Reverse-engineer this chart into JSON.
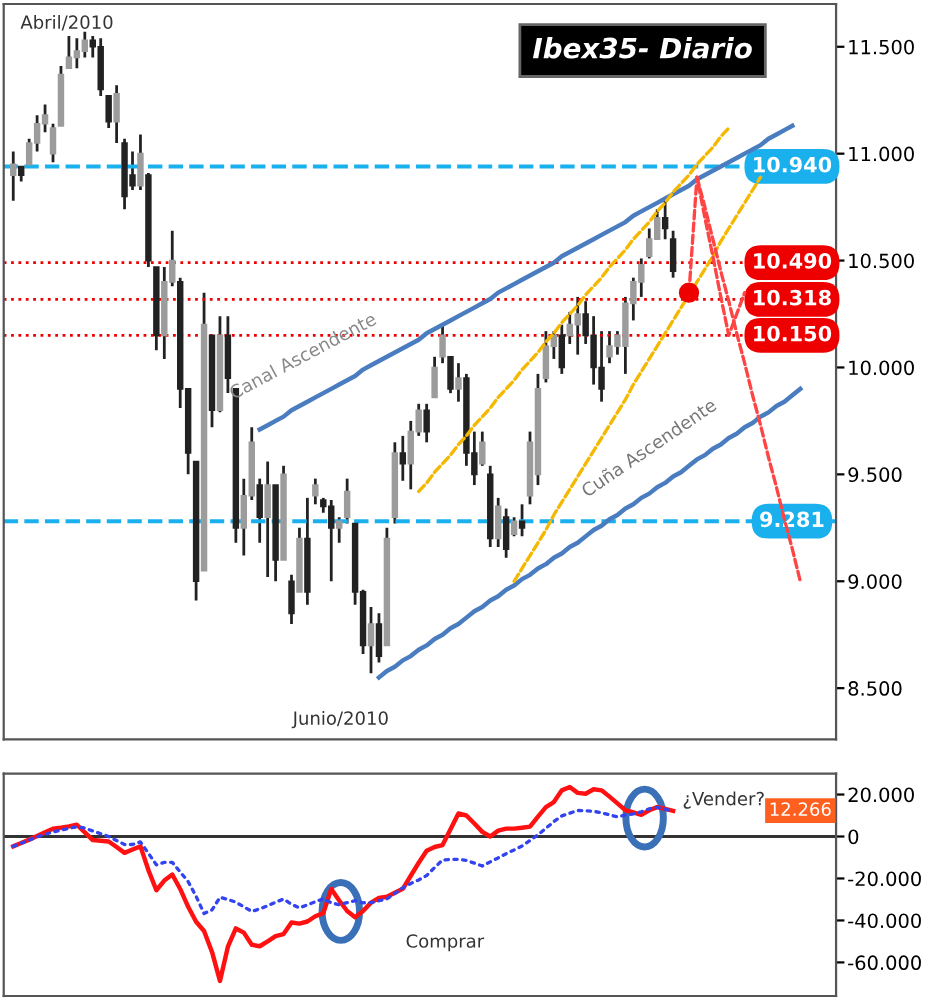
{
  "chart_data": [
    {
      "type": "candlestick",
      "title": "Ibex35- Diario",
      "color": "#222222",
      "colors": [
        "#9c9c9c",
        "#222222",
        "#9c9c9c",
        "#9c9c9c",
        "#9c9c9c",
        "#9c9c9c",
        "#9c9c9c",
        "#9c9c9c",
        "#9c9c9c",
        "#9c9c9c",
        "#222222",
        "#222222",
        "#222222",
        "#9c9c9c",
        "#222222",
        "#222222",
        "#9c9c9c",
        "#222222",
        "#222222",
        "#9c9c9c",
        "#9c9c9c",
        "#222222",
        "#222222",
        "#222222",
        "#9c9c9c",
        "#222222",
        "#9c9c9c",
        "#222222",
        "#222222",
        "#9c9c9c",
        "#9c9c9c",
        "#222222",
        "#9c9c9c",
        "#222222",
        "#9c9c9c",
        "#222222",
        "#9c9c9c",
        "#222222",
        "#9c9c9c",
        "#222222",
        "#222222",
        "#9c9c9c",
        "#9c9c9c",
        "#222222",
        "#222222",
        "#9c9c9c",
        "#222222",
        "#9c9c9c",
        "#9c9c9c",
        "#222222",
        "#9c9c9c",
        "#9c9c9c",
        "#222222",
        "#9c9c9c",
        "#9c9c9c",
        "#222222",
        "#9c9c9c",
        "#222222",
        "#222222",
        "#9c9c9c",
        "#222222",
        "#9c9c9c",
        "#222222",
        "#9c9c9c",
        "#222222",
        "#9c9c9c",
        "#9c9c9c",
        "#9c9c9c",
        "#9c9c9c",
        "#222222",
        "#9c9c9c",
        "#9c9c9c",
        "#222222",
        "#222222",
        "#222222",
        "#9c9c9c",
        "#9c9c9c",
        "#9c9c9c",
        "#9c9c9c",
        "#9c9c9c",
        "#9c9c9c",
        "#9c9c9c",
        "#222222",
        "#222222",
        null,
        null,
        null,
        null,
        null,
        null,
        null,
        null,
        null,
        null,
        null,
        null,
        null,
        null,
        null,
        null
      ],
      "categories": [
        null,
        null,
        null,
        null,
        null,
        null,
        null,
        null,
        null,
        null,
        null,
        null,
        null,
        null,
        null,
        null,
        null,
        null,
        null,
        null,
        null,
        null,
        null,
        null,
        null,
        null,
        null,
        null,
        null,
        null,
        null,
        null,
        null,
        null,
        null,
        null,
        null,
        null,
        null,
        null,
        null,
        null,
        null,
        null,
        null,
        null,
        null,
        null,
        null,
        null,
        null,
        null,
        null,
        null,
        null,
        null,
        null,
        null,
        null,
        null,
        null,
        null,
        null,
        null,
        null,
        null,
        null,
        null,
        null,
        null,
        null,
        null,
        null,
        null,
        null,
        null,
        null,
        null,
        null,
        null,
        null,
        null,
        null,
        null,
        null,
        null,
        null,
        null,
        null,
        null,
        null,
        null,
        null,
        null,
        null,
        null,
        null,
        null,
        null,
        null
      ],
      "ohlc": [
        [
          10900,
          11010,
          10780,
          10950
        ],
        [
          10940,
          10940,
          10870,
          10900
        ],
        [
          10950,
          11070,
          10950,
          11050
        ],
        [
          11050,
          11180,
          11010,
          11140
        ],
        [
          11140,
          11230,
          11100,
          11180
        ],
        [
          11000,
          11140,
          10960,
          11120
        ],
        [
          11130,
          11410,
          11130,
          11370
        ],
        [
          11400,
          11550,
          11400,
          11450
        ],
        [
          11450,
          11540,
          11400,
          11480
        ],
        [
          11480,
          11570,
          11450,
          11530
        ],
        [
          11530,
          11550,
          11450,
          11500
        ],
        [
          11500,
          11540,
          11270,
          11300
        ],
        [
          11270,
          11270,
          11120,
          11150
        ],
        [
          11150,
          11320,
          11050,
          11280
        ],
        [
          11050,
          11070,
          10740,
          10800
        ],
        [
          10900,
          11010,
          10830,
          10850
        ],
        [
          10850,
          11090,
          10830,
          11000
        ],
        [
          10900,
          10910,
          10470,
          10500
        ],
        [
          10470,
          10470,
          10080,
          10150
        ],
        [
          10150,
          10470,
          10040,
          10400
        ],
        [
          10400,
          10640,
          10380,
          10500
        ],
        [
          10400,
          10420,
          9810,
          9900
        ],
        [
          9900,
          9900,
          9500,
          9600
        ],
        [
          9560,
          9560,
          8910,
          9000
        ],
        [
          9050,
          10350,
          9050,
          10200
        ],
        [
          10150,
          10150,
          9720,
          9800
        ],
        [
          9800,
          10240,
          9790,
          10150
        ],
        [
          10150,
          10240,
          9880,
          9950
        ],
        [
          9900,
          9900,
          9180,
          9250
        ],
        [
          9250,
          9480,
          9120,
          9400
        ],
        [
          9400,
          9720,
          9380,
          9650
        ],
        [
          9450,
          9480,
          9180,
          9300
        ],
        [
          9300,
          9560,
          9020,
          9450
        ],
        [
          9450,
          9450,
          9000,
          9100
        ],
        [
          9100,
          9540,
          9100,
          9500
        ],
        [
          9000,
          9030,
          8800,
          8850
        ],
        [
          8950,
          9250,
          8950,
          9200
        ],
        [
          9200,
          9390,
          8890,
          8950
        ],
        [
          9400,
          9480,
          9360,
          9450
        ],
        [
          9380,
          9390,
          9320,
          9350
        ],
        [
          9350,
          9380,
          9000,
          9250
        ],
        [
          9250,
          9300,
          9180,
          9280
        ],
        [
          9300,
          9480,
          9270,
          9420
        ],
        [
          9270,
          9270,
          8890,
          8950
        ],
        [
          8950,
          8960,
          8660,
          8700
        ],
        [
          8700,
          8880,
          8570,
          8800
        ],
        [
          8800,
          8850,
          8620,
          8650
        ],
        [
          8700,
          9250,
          8700,
          9200
        ],
        [
          9300,
          9650,
          9270,
          9600
        ],
        [
          9600,
          9680,
          9470,
          9550
        ],
        [
          9550,
          9750,
          9430,
          9700
        ],
        [
          9700,
          9830,
          9680,
          9800
        ],
        [
          9800,
          9830,
          9650,
          9700
        ],
        [
          9860,
          10050,
          9860,
          10000
        ],
        [
          10050,
          10200,
          10020,
          10150
        ],
        [
          10050,
          10050,
          9880,
          9900
        ],
        [
          9900,
          10020,
          9840,
          9950
        ],
        [
          9950,
          9970,
          9540,
          9600
        ],
        [
          9600,
          9700,
          9450,
          9500
        ],
        [
          9550,
          9700,
          9540,
          9650
        ],
        [
          9500,
          9540,
          9160,
          9200
        ],
        [
          9200,
          9390,
          9160,
          9350
        ],
        [
          9300,
          9340,
          9110,
          9150
        ],
        [
          9220,
          9300,
          9210,
          9280
        ],
        [
          9280,
          9360,
          9210,
          9250
        ],
        [
          9400,
          9700,
          9360,
          9650
        ],
        [
          9500,
          9970,
          9450,
          9900
        ],
        [
          9950,
          10170,
          9930,
          10100
        ],
        [
          10100,
          10170,
          10040,
          10150
        ],
        [
          10150,
          10200,
          9970,
          10000
        ],
        [
          10150,
          10260,
          10110,
          10200
        ],
        [
          10200,
          10330,
          10060,
          10250
        ],
        [
          10250,
          10310,
          10110,
          10150
        ],
        [
          10150,
          10240,
          9920,
          10000
        ],
        [
          10000,
          10170,
          9840,
          9900
        ],
        [
          10050,
          10170,
          10020,
          10100
        ],
        [
          10100,
          10170,
          10060,
          10150
        ],
        [
          10100,
          10330,
          9970,
          10300
        ],
        [
          10300,
          10420,
          10220,
          10400
        ],
        [
          10400,
          10510,
          10330,
          10480
        ],
        [
          10520,
          10650,
          10510,
          10600
        ],
        [
          10600,
          10740,
          10600,
          10700
        ],
        [
          10700,
          10780,
          10600,
          10650
        ],
        [
          10600,
          10640,
          10420,
          10450
        ],
        null,
        null,
        null,
        null,
        null,
        null,
        null,
        null,
        null,
        null,
        null,
        null,
        null,
        null,
        null,
        null
      ],
      "series": [
        {
          "type": "line",
          "color": "#4a7cc0",
          "line_style": "solid",
          "values": [
            null,
            null,
            null,
            null,
            null,
            null,
            null,
            null,
            null,
            null,
            null,
            null,
            null,
            null,
            null,
            null,
            null,
            null,
            null,
            null,
            null,
            null,
            null,
            null,
            null,
            null,
            null,
            null,
            null,
            null,
            null,
            9710,
            9730,
            9750,
            9770,
            9800,
            9820,
            9840,
            9860,
            9880,
            9900,
            9920,
            9940,
            9960,
            9990,
            10010,
            10030,
            10050,
            10070,
            10090,
            10110,
            10130,
            10160,
            10180,
            10200,
            10220,
            10240,
            10260,
            10280,
            10300,
            10320,
            10350,
            10370,
            10390,
            10410,
            10430,
            10450,
            10470,
            10490,
            10520,
            10540,
            10560,
            10580,
            10600,
            10620,
            10640,
            10660,
            10680,
            10710,
            10730,
            10750,
            10770,
            10790,
            10810,
            10830,
            10850,
            10880,
            10900,
            10920,
            10940,
            10960,
            10980,
            11000,
            11020,
            11040,
            11070,
            11090,
            11110,
            11130,
            null
          ]
        },
        {
          "type": "line",
          "color": "#4a7cc0",
          "line_style": "solid",
          "values": [
            null,
            null,
            null,
            null,
            null,
            null,
            null,
            null,
            null,
            null,
            null,
            null,
            null,
            null,
            null,
            null,
            null,
            null,
            null,
            null,
            null,
            null,
            null,
            null,
            null,
            null,
            null,
            null,
            null,
            null,
            null,
            null,
            null,
            null,
            null,
            null,
            null,
            null,
            null,
            null,
            null,
            null,
            null,
            null,
            null,
            null,
            8550,
            8580,
            8600,
            8630,
            8650,
            8680,
            8700,
            8730,
            8750,
            8780,
            8800,
            8830,
            8860,
            8880,
            8910,
            8930,
            8960,
            8980,
            9010,
            9030,
            9060,
            9080,
            9110,
            9130,
            9160,
            9180,
            9210,
            9240,
            9260,
            9290,
            9310,
            9340,
            9360,
            9390,
            9410,
            9440,
            9460,
            9490,
            9510,
            9540,
            9570,
            9590,
            9620,
            9640,
            9670,
            9690,
            9720,
            9740,
            9770,
            9790,
            9820,
            9840,
            9870,
            9900
          ]
        },
        {
          "type": "line",
          "color": "#f5b800",
          "line_style": "dashed",
          "values": [
            null,
            null,
            null,
            null,
            null,
            null,
            null,
            null,
            null,
            null,
            null,
            null,
            null,
            null,
            null,
            null,
            null,
            null,
            null,
            null,
            null,
            null,
            null,
            null,
            null,
            null,
            null,
            null,
            null,
            null,
            null,
            null,
            null,
            null,
            null,
            null,
            null,
            null,
            null,
            null,
            null,
            null,
            null,
            null,
            null,
            null,
            null,
            null,
            null,
            null,
            null,
            9420,
            9460,
            9510,
            9550,
            9590,
            9640,
            9680,
            9730,
            9770,
            9810,
            9860,
            9900,
            9940,
            9990,
            10030,
            10070,
            10120,
            10160,
            10210,
            10250,
            10290,
            10340,
            10380,
            10420,
            10470,
            10510,
            10550,
            10600,
            10640,
            10680,
            10730,
            10770,
            10820,
            10860,
            10900,
            10950,
            10990,
            11030,
            11080,
            11120,
            null,
            null,
            null,
            null,
            null,
            null,
            null,
            null,
            null
          ]
        },
        {
          "type": "line",
          "color": "#f5b800",
          "line_style": "dashed",
          "values": [
            null,
            null,
            null,
            null,
            null,
            null,
            null,
            null,
            null,
            null,
            null,
            null,
            null,
            null,
            null,
            null,
            null,
            null,
            null,
            null,
            null,
            null,
            null,
            null,
            null,
            null,
            null,
            null,
            null,
            null,
            null,
            null,
            null,
            null,
            null,
            null,
            null,
            null,
            null,
            null,
            null,
            null,
            null,
            null,
            null,
            null,
            null,
            null,
            null,
            null,
            null,
            null,
            null,
            null,
            null,
            null,
            null,
            null,
            null,
            null,
            null,
            null,
            null,
            9000,
            9060,
            9120,
            9180,
            9240,
            9310,
            9370,
            9430,
            9490,
            9550,
            9610,
            9670,
            9730,
            9790,
            9850,
            9920,
            9980,
            10040,
            10100,
            10160,
            10220,
            10280,
            10340,
            10400,
            10460,
            10520,
            10590,
            10650,
            10710,
            10770,
            10830,
            10890,
            null,
            null,
            null,
            null,
            null
          ]
        },
        {
          "type": "line",
          "color": "#ff4444",
          "line_style": "dashed",
          "values": [
            null,
            null,
            null,
            null,
            null,
            null,
            null,
            null,
            null,
            null,
            null,
            null,
            null,
            null,
            null,
            null,
            null,
            null,
            null,
            null,
            null,
            null,
            null,
            null,
            null,
            null,
            null,
            null,
            null,
            null,
            null,
            null,
            null,
            null,
            null,
            null,
            null,
            null,
            null,
            null,
            null,
            null,
            null,
            null,
            null,
            null,
            null,
            null,
            null,
            null,
            null,
            null,
            null,
            null,
            null,
            null,
            null,
            null,
            null,
            null,
            null,
            null,
            null,
            null,
            null,
            null,
            null,
            null,
            null,
            null,
            null,
            null,
            null,
            null,
            null,
            null,
            null,
            null,
            null,
            null,
            null,
            null,
            null,
            null,
            null,
            10350,
            10890,
            10700,
            10520,
            10330,
            10150,
            10250,
            10350,
            null,
            null,
            null,
            null,
            null,
            null,
            null
          ]
        },
        {
          "type": "line",
          "color": "#ff4444",
          "line_style": "dashed",
          "values": [
            null,
            null,
            null,
            null,
            null,
            null,
            null,
            null,
            null,
            null,
            null,
            null,
            null,
            null,
            null,
            null,
            null,
            null,
            null,
            null,
            null,
            null,
            null,
            null,
            null,
            null,
            null,
            null,
            null,
            null,
            null,
            null,
            null,
            null,
            null,
            null,
            null,
            null,
            null,
            null,
            null,
            null,
            null,
            null,
            null,
            null,
            null,
            null,
            null,
            null,
            null,
            null,
            null,
            null,
            null,
            null,
            null,
            null,
            null,
            null,
            null,
            null,
            null,
            null,
            null,
            null,
            null,
            null,
            null,
            null,
            null,
            null,
            null,
            null,
            null,
            null,
            null,
            null,
            null,
            null,
            null,
            null,
            null,
            null,
            null,
            null,
            10890,
            10750,
            10600,
            10450,
            10310,
            10160,
            10020,
            9870,
            9730,
            9580,
            9440,
            9290,
            9150,
            9000
          ]
        },
        {
          "type": "scatter",
          "color": "#ee0000",
          "marker": "circle",
          "values": [
            null,
            null,
            null,
            null,
            null,
            null,
            null,
            null,
            null,
            null,
            null,
            null,
            null,
            null,
            null,
            null,
            null,
            null,
            null,
            null,
            null,
            null,
            null,
            null,
            null,
            null,
            null,
            null,
            null,
            null,
            null,
            null,
            null,
            null,
            null,
            null,
            null,
            null,
            null,
            null,
            null,
            null,
            null,
            null,
            null,
            null,
            null,
            null,
            null,
            null,
            null,
            null,
            null,
            null,
            null,
            null,
            null,
            null,
            null,
            null,
            null,
            null,
            null,
            null,
            null,
            null,
            null,
            null,
            null,
            null,
            null,
            null,
            null,
            null,
            null,
            null,
            null,
            null,
            null,
            null,
            null,
            null,
            null,
            null,
            null,
            10350,
            null,
            null,
            null,
            null,
            null,
            null,
            null,
            null,
            null,
            null,
            null,
            null,
            null,
            null
          ]
        }
      ],
      "ylim": [
        8260,
        11700
      ],
      "yticks": [
        {
          "value": 8500,
          "label": "8.500"
        },
        {
          "value": 9000,
          "label": "9.000"
        },
        {
          "value": 9500,
          "label": "9.500"
        },
        {
          "value": 10000,
          "label": "10.000"
        },
        {
          "value": 10500,
          "label": "10.500"
        },
        {
          "value": 11000,
          "label": "11.000"
        },
        {
          "value": 11500,
          "label": "11.500"
        }
      ],
      "tick_labels": "y",
      "ref_lines": [
        {
          "axis": "y",
          "value": 10940,
          "label": "10.940",
          "color": "#1ab0ee",
          "line_style": "dashed"
        },
        {
          "axis": "y",
          "value": 10490,
          "label": "10.490",
          "color": "#ee0000",
          "line_style": "dotted"
        },
        {
          "axis": "y",
          "value": 10318,
          "label": "10.318",
          "color": "#ee0000",
          "line_style": "dotted"
        },
        {
          "axis": "y",
          "value": 10150,
          "label": "10.150",
          "color": "#ee0000",
          "line_style": "dotted"
        },
        {
          "axis": "y",
          "value": 9281,
          "label": "9.281",
          "color": "#1ab0ee",
          "line_style": "dashed"
        }
      ],
      "annotations": [
        "Abril/2010",
        "Junio/2010",
        "Canal Ascendente",
        "Cuña Ascendente"
      ]
    },
    {
      "type": "line",
      "categories": [
        null,
        null,
        null,
        null,
        null,
        null,
        null,
        null,
        null,
        null,
        null,
        null,
        null,
        null,
        null,
        null,
        null,
        null,
        null,
        null,
        null,
        null,
        null,
        null,
        null,
        null,
        null,
        null,
        null,
        null,
        null,
        null,
        null,
        null,
        null,
        null,
        null,
        null,
        null,
        null,
        null,
        null,
        null,
        null,
        null,
        null,
        null,
        null,
        null,
        null,
        null,
        null,
        null,
        null,
        null,
        null,
        null,
        null,
        null,
        null,
        null,
        null,
        null,
        null,
        null,
        null,
        null,
        null,
        null,
        null,
        null,
        null,
        null,
        null,
        null,
        null,
        null,
        null,
        null,
        null,
        null,
        null,
        null,
        null,
        null,
        null,
        null,
        null,
        null,
        null,
        null,
        null,
        null,
        null,
        null,
        null,
        null,
        null,
        null,
        null
      ],
      "series": [
        {
          "color": "#ff1111",
          "line_style": "solid",
          "values": [
            -4700,
            -3100,
            -1500,
            200,
            2000,
            3700,
            4200,
            4800,
            5600,
            2000,
            -1700,
            -2000,
            -2400,
            -5000,
            -7800,
            -6200,
            -4700,
            -16000,
            -25600,
            -21000,
            -18100,
            -25000,
            -33500,
            -40600,
            -45000,
            -55000,
            -68800,
            -52500,
            -43800,
            -45800,
            -51600,
            -52300,
            -50000,
            -47500,
            -46500,
            -41000,
            -41500,
            -40500,
            -38000,
            -36500,
            -25000,
            -30500,
            -35500,
            -38500,
            -35500,
            -31500,
            -29300,
            -28700,
            -26800,
            -24950,
            -18700,
            -12500,
            -6800,
            -5000,
            -4100,
            3500,
            11000,
            10000,
            6200,
            2200,
            0,
            2800,
            3750,
            3750,
            4200,
            4700,
            9500,
            14000,
            16400,
            22000,
            23600,
            20800,
            20400,
            22500,
            22000,
            19000,
            15800,
            12500,
            11500,
            10300,
            12500,
            14000,
            13200,
            12266,
            null,
            null,
            null,
            null,
            null,
            null,
            null,
            null,
            null,
            null,
            null,
            null,
            null,
            null,
            null,
            null
          ]
        },
        {
          "color": "#3344ee",
          "line_style": "dotted",
          "values": [
            -4700,
            -3200,
            -1700,
            -200,
            1000,
            2200,
            3000,
            3900,
            4600,
            4000,
            2600,
            1300,
            0,
            -1900,
            -3800,
            -3800,
            -2600,
            -8000,
            -13500,
            -12300,
            -12300,
            -16900,
            -21500,
            -28500,
            -36700,
            -35000,
            -29000,
            -30000,
            -31300,
            -33500,
            -35700,
            -34500,
            -33000,
            -31300,
            -29800,
            -32300,
            -34000,
            -32600,
            -31100,
            -29700,
            -31600,
            -32500,
            -31500,
            -30600,
            -31600,
            -31500,
            -30600,
            -29700,
            -27100,
            -24500,
            -22400,
            -20700,
            -18600,
            -14800,
            -11200,
            -10900,
            -10900,
            -11400,
            -12700,
            -14070,
            -12100,
            -10200,
            -8200,
            -6400,
            -4500,
            -1900,
            800,
            3900,
            7100,
            9800,
            11100,
            12400,
            12300,
            12000,
            11300,
            10300,
            9400,
            10200,
            10800,
            11800,
            13200,
            13900,
            13000,
            12000,
            null,
            null,
            null,
            null,
            null,
            null,
            null,
            null,
            null,
            null,
            null,
            null,
            null,
            null,
            null,
            null
          ]
        }
      ],
      "ylim": [
        -76000,
        30000
      ],
      "yticks": [
        {
          "value": -60000,
          "label": "-60.000"
        },
        {
          "value": -40000,
          "label": "-40.000"
        },
        {
          "value": -20000,
          "label": "-20.000"
        },
        {
          "value": 0,
          "label": "0"
        },
        {
          "value": 20000,
          "label": "20.000"
        }
      ],
      "tick_labels": "y",
      "ref_lines": [
        {
          "axis": "y",
          "value": 0,
          "color": "#333333",
          "line_style": "solid"
        }
      ],
      "annotations": [
        "12.266",
        "¿Vender?",
        "Comprar"
      ]
    }
  ]
}
